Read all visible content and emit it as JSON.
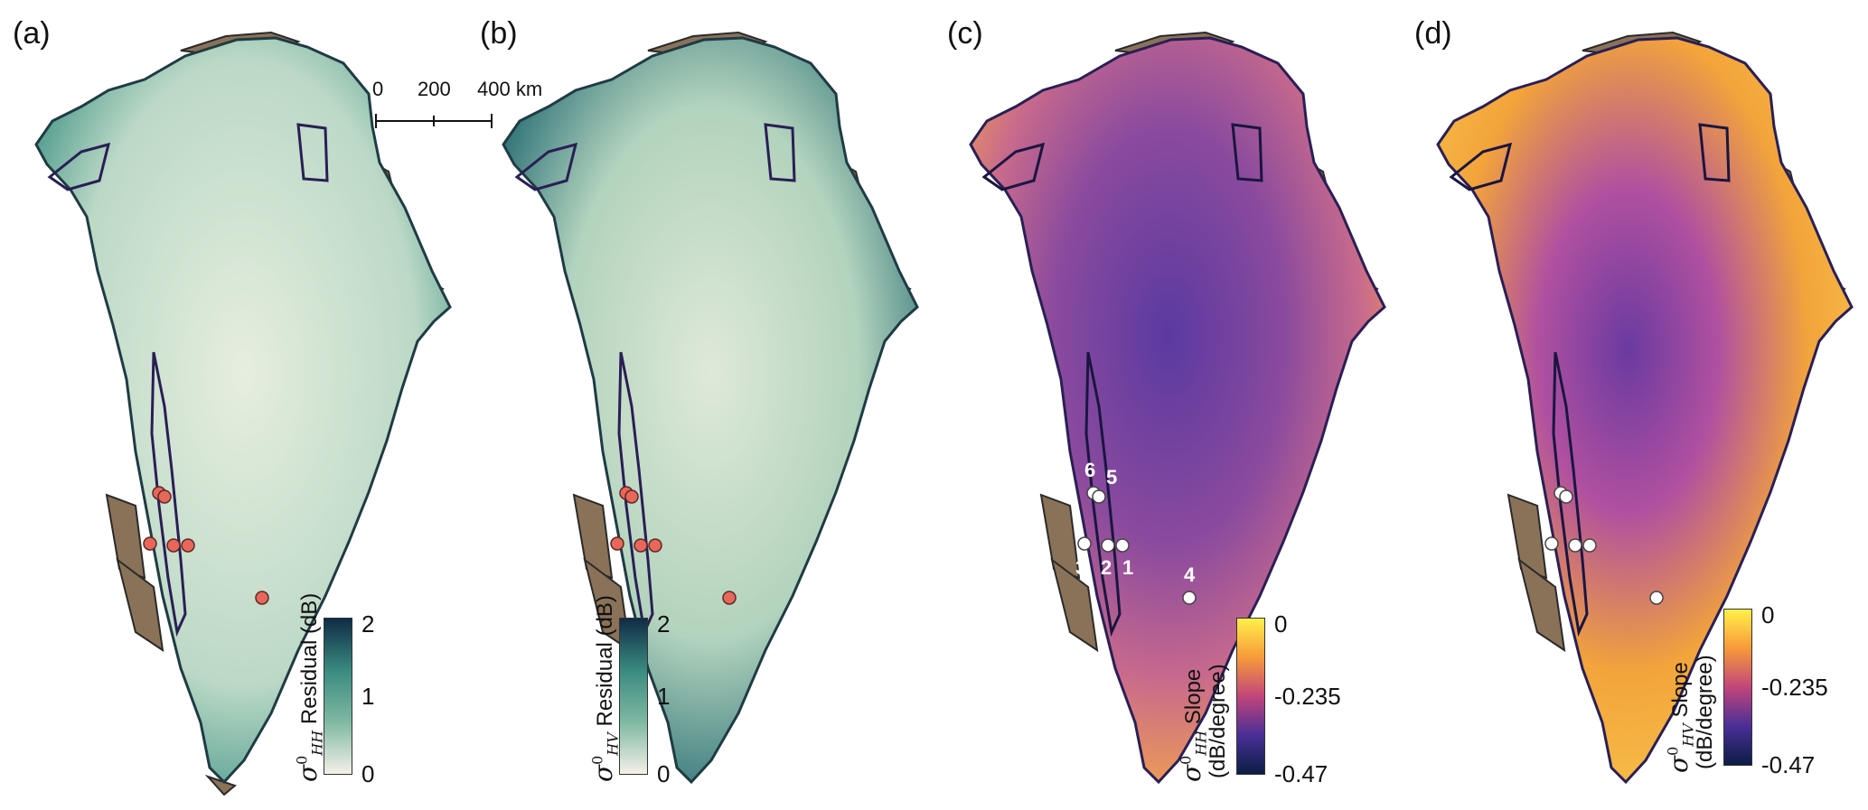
{
  "panels": [
    {
      "label": "(a)",
      "colorbar": {
        "ticks": [
          "2",
          "1",
          "0"
        ],
        "symbol": "σ",
        "sup": "0",
        "sub": "HH",
        "title": "Residual (dB)",
        "colors": [
          "#f4f0e8",
          "#7fb9a2",
          "#3a8a80",
          "#0f2c45"
        ]
      }
    },
    {
      "label": "(b)",
      "colorbar": {
        "ticks": [
          "2",
          "1",
          "0"
        ],
        "symbol": "σ",
        "sup": "0",
        "sub": "HV",
        "title": "Residual (dB)",
        "colors": [
          "#f4f0e8",
          "#7fb9a2",
          "#3a8a80",
          "#0f2c45"
        ]
      }
    },
    {
      "label": "(c)",
      "colorbar": {
        "ticks": [
          "0",
          "-0.235",
          "-0.47"
        ],
        "symbol": "σ",
        "sup": "0",
        "sub": "HH",
        "title": "Slope",
        "title2": "(dB/degree)",
        "colors": [
          "#fff04a",
          "#f79a3a",
          "#c2457a",
          "#4a2f96",
          "#0b1d45"
        ]
      }
    },
    {
      "label": "(d)",
      "colorbar": {
        "ticks": [
          "0",
          "-0.235",
          "-0.47"
        ],
        "symbol": "σ",
        "sup": "0",
        "sub": "HV",
        "title": "Slope",
        "title2": "(dB/degree)",
        "colors": [
          "#fff04a",
          "#f79a3a",
          "#c2457a",
          "#4a2f96",
          "#0b1d45"
        ]
      }
    }
  ],
  "scalebar": {
    "labels": [
      "0",
      "200",
      "400 km"
    ]
  },
  "sites": [
    "1",
    "2",
    "3",
    "4",
    "5",
    "6"
  ],
  "colors": {
    "land": "#8a7258",
    "coast": "#2a2a2a",
    "outline": "#2a1f55",
    "site_marker_ab": "#e8675a",
    "site_marker_cd": "#ffffff"
  },
  "map_fills": {
    "a": "#bcd9c6",
    "b": "#b2d3bd",
    "c": "#c86a8c",
    "d": "#f3a43a"
  }
}
